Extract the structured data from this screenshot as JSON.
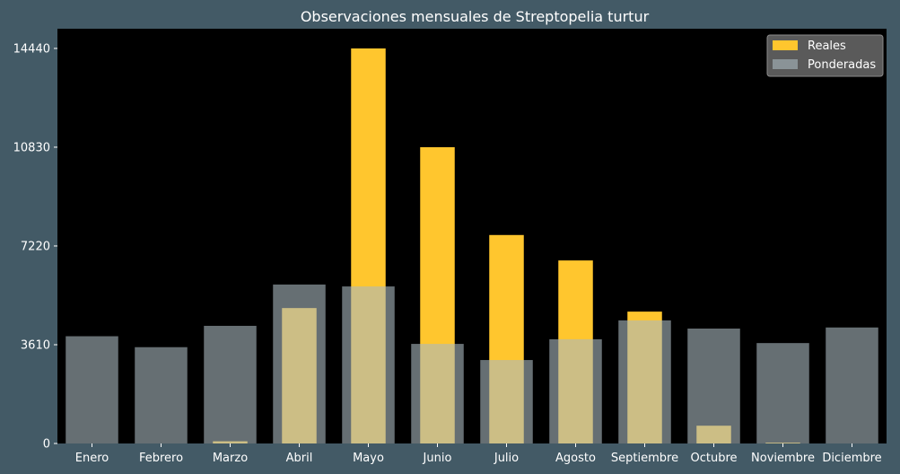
{
  "chart_data": {
    "type": "bar",
    "title": "Observaciones mensuales de Streptopelia turtur",
    "xlabel": "",
    "ylabel": "",
    "categories": [
      "Enero",
      "Febrero",
      "Marzo",
      "Abril",
      "Mayo",
      "Junio",
      "Julio",
      "Agosto",
      "Septiembre",
      "Octubre",
      "Noviembre",
      "Diciembre"
    ],
    "yticks": [
      0,
      3610,
      7220,
      10830,
      14440
    ],
    "ylim": [
      0,
      15160
    ],
    "grid": false,
    "legend_position": "top-right",
    "series": [
      {
        "name": "Reales",
        "color": "#ffc62e",
        "values": [
          0,
          0,
          80,
          4950,
          14440,
          10830,
          7620,
          6690,
          4820,
          650,
          30,
          0
        ]
      },
      {
        "name": "Ponderadas",
        "color": "#aab9bf",
        "values": [
          3920,
          3520,
          4300,
          5810,
          5740,
          3640,
          3050,
          3810,
          4500,
          4200,
          3670,
          4240
        ]
      }
    ]
  },
  "colors": {
    "background": "#435a66",
    "plot_background": "#000000",
    "legend_background": "#5a5a5a",
    "text": "#ffffff"
  }
}
